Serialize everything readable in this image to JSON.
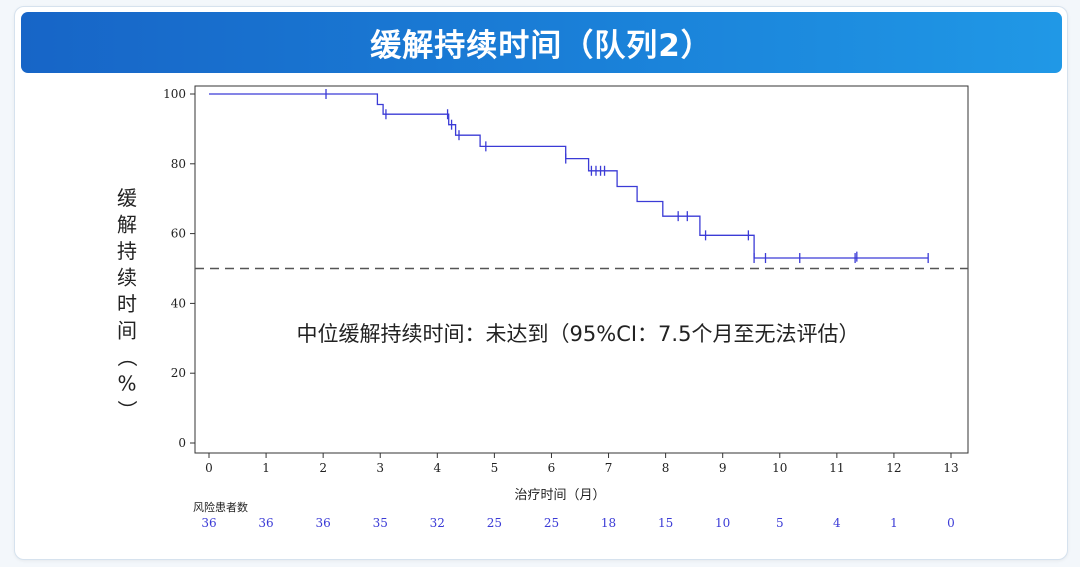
{
  "header": {
    "title": "缓解持续时间（队列2）"
  },
  "colors": {
    "banner_start": "#1765c7",
    "banner_end": "#2098e6",
    "curve": "#3b3bd6",
    "risk_numbers": "#3b3bd6",
    "reference_line": "#555555"
  },
  "chart_data": {
    "type": "line",
    "subtype": "kaplan-meier step curve with censor marks",
    "xlabel": "治疗时间（月）",
    "ylabel": "缓解持续时间（%）",
    "xlim": [
      0,
      13
    ],
    "ylim": [
      0,
      100
    ],
    "x_ticks": [
      "0",
      "1",
      "2",
      "3",
      "4",
      "5",
      "6",
      "7",
      "8",
      "9",
      "10",
      "11",
      "12",
      "13"
    ],
    "y_ticks": [
      "0",
      "20",
      "40",
      "60",
      "80",
      "100"
    ],
    "reference_line_y": 50,
    "annotation": "中位缓解持续时间：未达到（95%CI：7.5个月至无法评估）",
    "series": [
      {
        "steps": [
          [
            0,
            100
          ],
          [
            2.95,
            100
          ],
          [
            2.95,
            97
          ],
          [
            3.05,
            97
          ],
          [
            3.05,
            94.2
          ],
          [
            4.2,
            94.2
          ],
          [
            4.2,
            91.2
          ],
          [
            4.32,
            91.2
          ],
          [
            4.32,
            88.2
          ],
          [
            4.75,
            88.2
          ],
          [
            4.75,
            85
          ],
          [
            6.25,
            85
          ],
          [
            6.25,
            81.5
          ],
          [
            6.65,
            81.5
          ],
          [
            6.65,
            78
          ],
          [
            7.15,
            78
          ],
          [
            7.15,
            73.5
          ],
          [
            7.5,
            73.5
          ],
          [
            7.5,
            69.2
          ],
          [
            7.95,
            69.2
          ],
          [
            7.95,
            65
          ],
          [
            8.6,
            65
          ],
          [
            8.6,
            59.5
          ],
          [
            9.55,
            59.5
          ],
          [
            9.55,
            53
          ],
          [
            12.6,
            53
          ]
        ],
        "censored": [
          [
            2.05,
            100
          ],
          [
            3.1,
            94.2
          ],
          [
            4.18,
            94.2
          ],
          [
            4.25,
            91.2
          ],
          [
            4.38,
            88.2
          ],
          [
            4.85,
            85
          ],
          [
            6.25,
            81.5
          ],
          [
            6.7,
            78
          ],
          [
            6.78,
            78
          ],
          [
            6.86,
            78
          ],
          [
            6.93,
            78
          ],
          [
            8.22,
            65
          ],
          [
            8.38,
            65
          ],
          [
            8.7,
            59.5
          ],
          [
            9.45,
            59.5
          ],
          [
            9.55,
            53
          ],
          [
            9.75,
            53
          ],
          [
            10.35,
            53
          ],
          [
            11.32,
            53
          ],
          [
            11.35,
            53.4
          ],
          [
            12.6,
            53
          ]
        ]
      }
    ],
    "risk_table": {
      "label": "风险患者数",
      "counts": [
        "36",
        "36",
        "36",
        "35",
        "32",
        "25",
        "25",
        "18",
        "15",
        "10",
        "5",
        "4",
        "1",
        "0"
      ]
    }
  }
}
